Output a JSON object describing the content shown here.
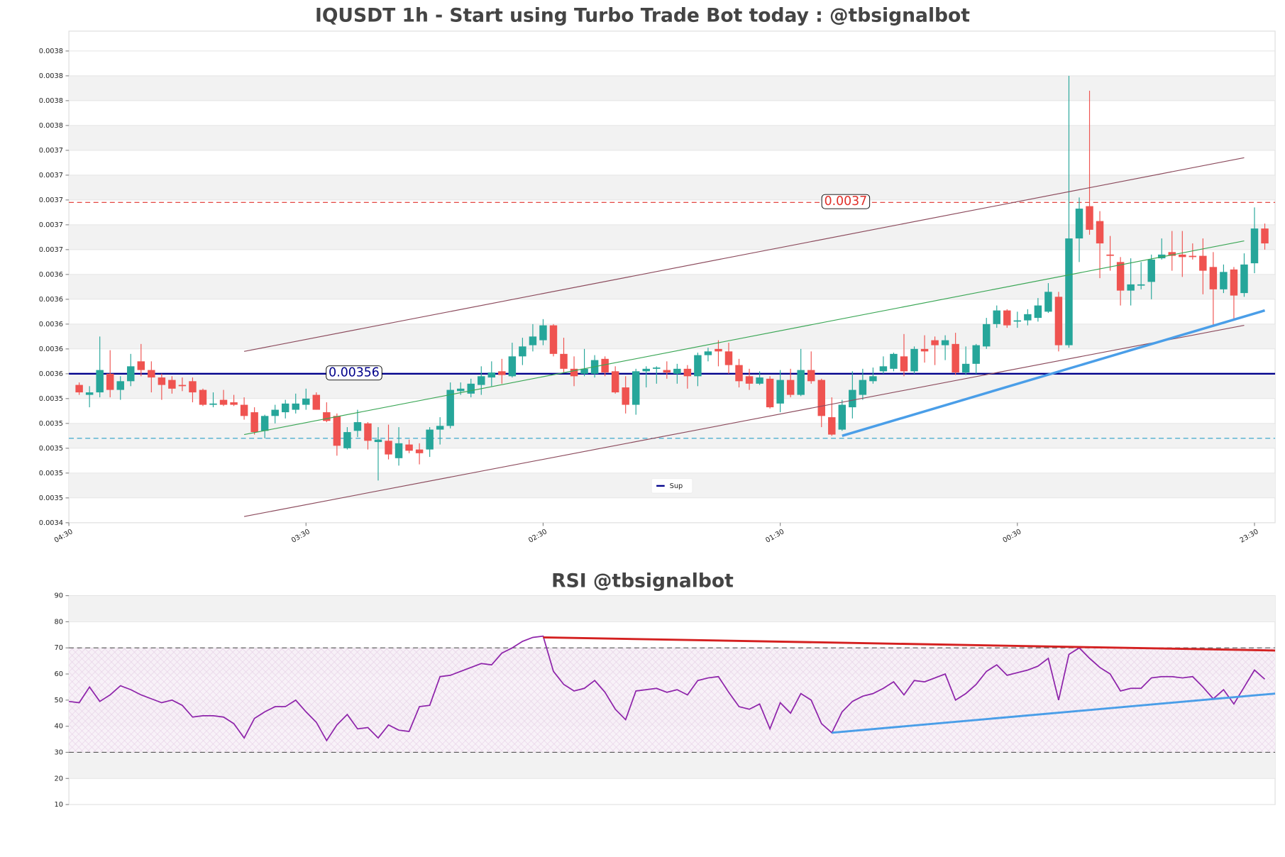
{
  "chart_data": [
    {
      "type": "candlestick",
      "title": "IQUSDT 1h - Start using Turbo Trade Bot today : @tbsignalbot",
      "xlim": [
        0,
        117
      ],
      "xticks": [
        {
          "value": 0,
          "label": "04:30"
        },
        {
          "value": 23,
          "label": "03:30"
        },
        {
          "value": 46,
          "label": "02:30"
        },
        {
          "value": 69,
          "label": "01:30"
        },
        {
          "value": 92,
          "label": "00:30"
        },
        {
          "value": 115,
          "label": "23:30"
        }
      ],
      "ylim": [
        0.00344,
        0.003836
      ],
      "yticks": [
        {
          "value": 0.00344,
          "label": "0.0034"
        },
        {
          "value": 0.00346,
          "label": "0.0035"
        },
        {
          "value": 0.00348,
          "label": "0.0035"
        },
        0.0035,
        {
          "value": 0.00352,
          "label": "0.0035"
        },
        {
          "value": 0.00354,
          "label": "0.0035"
        },
        {
          "value": 0.00356,
          "label": "0.0036"
        },
        {
          "value": 0.00358,
          "label": "0.0036"
        },
        0.0036,
        {
          "value": 0.00362,
          "label": "0.0036"
        },
        {
          "value": 0.00364,
          "label": "0.0036"
        },
        {
          "value": 0.00366,
          "label": "0.0037"
        },
        {
          "value": 0.00368,
          "label": "0.0037"
        },
        0.0037,
        {
          "value": 0.00372,
          "label": "0.0037"
        },
        {
          "value": 0.00374,
          "label": "0.0037"
        },
        {
          "value": 0.00376,
          "label": "0.0038"
        },
        {
          "value": 0.00378,
          "label": "0.0038"
        },
        0.0038,
        {
          "value": 0.00382,
          "label": "0.0038"
        }
      ],
      "up_color": "#26a69a",
      "down_color": "#ef5350",
      "open": [
        0.003551,
        0.003543,
        0.003545,
        0.00356,
        0.003547,
        0.003554,
        0.00357,
        0.003563,
        0.003557,
        0.003555,
        0.003551,
        0.003554,
        0.003547,
        0.003535,
        0.003539,
        0.003537,
        0.003535,
        0.003529,
        0.003514,
        0.003526,
        0.003529,
        0.003531,
        0.003535,
        0.003543,
        0.003529,
        0.003526,
        0.0035,
        0.003514,
        0.00352,
        0.003505,
        0.003506,
        0.003492,
        0.003503,
        0.003499,
        0.003499,
        0.003515,
        0.003518,
        0.003546,
        0.003544,
        0.003551,
        0.003557,
        0.003562,
        0.003558,
        0.003574,
        0.003583,
        0.003587,
        0.003599,
        0.003576,
        0.003564,
        0.00356,
        0.00356,
        0.003572,
        0.003562,
        0.003549,
        0.003535,
        0.003562,
        0.003564,
        0.003563,
        0.00356,
        0.003564,
        0.003558,
        0.003575,
        0.00358,
        0.003578,
        0.003567,
        0.003558,
        0.003552,
        0.003556,
        0.003536,
        0.003555,
        0.003543,
        0.003563,
        0.003555,
        0.003525,
        0.003515,
        0.003533,
        0.003543,
        0.003554,
        0.003562,
        0.003564,
        0.003574,
        0.003562,
        0.00358,
        0.003587,
        0.003583,
        0.003584,
        0.003561,
        0.003568,
        0.003582,
        0.0036,
        0.003611,
        0.003602,
        0.003603,
        0.003605,
        0.00361,
        0.003622,
        0.003583,
        0.003669,
        0.003695,
        0.003683,
        0.003656,
        0.00365,
        0.003627,
        0.003631,
        0.003634,
        0.003653,
        0.003658,
        0.003656,
        0.003655,
        0.003655,
        0.003646,
        0.003628,
        0.003644,
        0.003625,
        0.003649,
        0.003677
      ],
      "high": [
        0.003553,
        0.00355,
        0.00359,
        0.003579,
        0.003558,
        0.003576,
        0.003584,
        0.00357,
        0.00356,
        0.003558,
        0.003557,
        0.003557,
        0.003548,
        0.003545,
        0.003547,
        0.003543,
        0.003541,
        0.003533,
        0.003527,
        0.003535,
        0.003539,
        0.003544,
        0.003548,
        0.003545,
        0.003537,
        0.003528,
        0.003517,
        0.003531,
        0.003521,
        0.003517,
        0.003519,
        0.003517,
        0.003507,
        0.003504,
        0.003517,
        0.003525,
        0.003553,
        0.003553,
        0.003556,
        0.003566,
        0.00357,
        0.003572,
        0.003585,
        0.003589,
        0.0036,
        0.003604,
        0.0036,
        0.003589,
        0.003574,
        0.00358,
        0.003575,
        0.003574,
        0.003566,
        0.003558,
        0.003564,
        0.003566,
        0.003566,
        0.00357,
        0.003568,
        0.003567,
        0.003577,
        0.003581,
        0.003587,
        0.003585,
        0.003572,
        0.003564,
        0.003562,
        0.003558,
        0.003563,
        0.003564,
        0.00358,
        0.003578,
        0.003556,
        0.003541,
        0.003539,
        0.003562,
        0.003564,
        0.003565,
        0.003574,
        0.003577,
        0.003592,
        0.003582,
        0.003591,
        0.00359,
        0.003591,
        0.003593,
        0.003582,
        0.003584,
        0.003605,
        0.003615,
        0.003612,
        0.00361,
        0.003612,
        0.003621,
        0.003633,
        0.003626,
        0.0038,
        0.003702,
        0.003788,
        0.003691,
        0.003671,
        0.003654,
        0.003653,
        0.00365,
        0.003656,
        0.003669,
        0.003675,
        0.003675,
        0.003665,
        0.003669,
        0.003658,
        0.003648,
        0.003646,
        0.003657,
        0.003694,
        0.003681
      ],
      "low": [
        0.003543,
        0.003533,
        0.003541,
        0.003541,
        0.003539,
        0.00355,
        0.003558,
        0.003545,
        0.003539,
        0.003544,
        0.003546,
        0.003537,
        0.003534,
        0.003533,
        0.003534,
        0.003534,
        0.003523,
        0.003511,
        0.003508,
        0.00352,
        0.003524,
        0.003528,
        0.003531,
        0.003531,
        0.003521,
        0.003494,
        0.003499,
        0.003509,
        0.003499,
        0.003474,
        0.003491,
        0.003486,
        0.003496,
        0.003487,
        0.003493,
        0.003503,
        0.003516,
        0.003543,
        0.003541,
        0.003543,
        0.00355,
        0.003552,
        0.003557,
        0.003567,
        0.003578,
        0.003583,
        0.003574,
        0.003561,
        0.00355,
        0.003558,
        0.003557,
        0.003558,
        0.003544,
        0.003528,
        0.003527,
        0.003549,
        0.003552,
        0.003556,
        0.003552,
        0.003548,
        0.00355,
        0.00357,
        0.003566,
        0.00356,
        0.003549,
        0.003547,
        0.003551,
        0.003532,
        0.003529,
        0.003541,
        0.003542,
        0.003552,
        0.003517,
        0.00351,
        0.003514,
        0.003524,
        0.003539,
        0.003552,
        0.00356,
        0.003562,
        0.003558,
        0.00356,
        0.003569,
        0.003567,
        0.003571,
        0.003559,
        0.003559,
        0.00356,
        0.00358,
        0.003597,
        0.003597,
        0.003597,
        0.003599,
        0.003602,
        0.003609,
        0.003578,
        0.003581,
        0.00365,
        0.003672,
        0.003637,
        0.003643,
        0.003615,
        0.003615,
        0.003628,
        0.00362,
        0.003652,
        0.003643,
        0.003638,
        0.003652,
        0.003624,
        0.003599,
        0.003625,
        0.003603,
        0.003622,
        0.003641,
        0.00366
      ],
      "close": [
        0.003545,
        0.003545,
        0.003563,
        0.003547,
        0.003554,
        0.003566,
        0.003563,
        0.003557,
        0.003551,
        0.003548,
        0.00355,
        0.003545,
        0.003535,
        0.003536,
        0.003535,
        0.003535,
        0.003526,
        0.003513,
        0.003526,
        0.003531,
        0.003536,
        0.003536,
        0.00354,
        0.003531,
        0.003522,
        0.003502,
        0.003513,
        0.003521,
        0.003506,
        0.003507,
        0.003495,
        0.003504,
        0.003498,
        0.003496,
        0.003515,
        0.003518,
        0.003547,
        0.003548,
        0.003552,
        0.003558,
        0.003561,
        0.003559,
        0.003574,
        0.003582,
        0.00359,
        0.003599,
        0.003576,
        0.003564,
        0.003558,
        0.003564,
        0.003571,
        0.003561,
        0.003545,
        0.003535,
        0.003562,
        0.003564,
        0.003565,
        0.003561,
        0.003564,
        0.003558,
        0.003575,
        0.003578,
        0.003578,
        0.003567,
        0.003554,
        0.003552,
        0.003557,
        0.003533,
        0.003555,
        0.003543,
        0.003563,
        0.003554,
        0.003526,
        0.003511,
        0.003535,
        0.003547,
        0.003555,
        0.003558,
        0.003566,
        0.003576,
        0.003562,
        0.00358,
        0.003578,
        0.003583,
        0.003587,
        0.003561,
        0.003568,
        0.003583,
        0.0036,
        0.003611,
        0.003599,
        0.003603,
        0.003608,
        0.003615,
        0.003626,
        0.003583,
        0.003669,
        0.003693,
        0.003676,
        0.003665,
        0.003655,
        0.003627,
        0.003632,
        0.003632,
        0.003652,
        0.003656,
        0.003655,
        0.003654,
        0.003654,
        0.003643,
        0.003628,
        0.003642,
        0.003623,
        0.003648,
        0.003677,
        0.003665
      ],
      "trendlines": [
        {
          "x": [
            17,
            114
          ],
          "y": [
            0.003578,
            0.003734
          ],
          "color": "#8b4a5c"
        },
        {
          "x": [
            17,
            114
          ],
          "y": [
            0.003445,
            0.003599
          ],
          "color": "#8b4a5c"
        },
        {
          "x": [
            17,
            114
          ],
          "y": [
            0.003511,
            0.003667
          ],
          "color": "#3aa655"
        },
        {
          "x": [
            75,
            116
          ],
          "y": [
            0.00351,
            0.003611
          ],
          "color": "#4a9ee8"
        }
      ],
      "hlines": [
        {
          "name": "Sup",
          "value": 0.00356,
          "label": "0.00356",
          "color": "#00008b",
          "dashed": false
        },
        {
          "value": 0.003698,
          "label": "0.0037",
          "color": "#e0302a",
          "dashed": true
        },
        {
          "value": 0.003508,
          "color": "#2aa0c8",
          "dashed": true
        }
      ],
      "legend": "lower center",
      "grid": true
    },
    {
      "type": "line",
      "title": "RSI @tbsignalbot",
      "xlim": [
        0,
        117
      ],
      "ylim": [
        10,
        90
      ],
      "yticks": [
        10,
        20,
        30,
        40,
        50,
        60,
        70,
        80,
        90
      ],
      "color": "#8e24aa",
      "values": [
        49.5,
        49,
        55,
        49.5,
        52,
        55.5,
        54,
        52,
        50.5,
        49,
        50,
        48,
        43.5,
        44,
        44,
        43.5,
        41,
        35.5,
        43,
        45.5,
        47.5,
        47.5,
        50,
        45.5,
        41.5,
        34.5,
        40.5,
        44.5,
        39,
        39.5,
        35.5,
        40.5,
        38.5,
        38,
        47.5,
        48,
        59,
        59.5,
        61,
        62.5,
        64,
        63.5,
        68,
        70,
        72.5,
        74,
        74.5,
        61,
        56,
        53.5,
        54.5,
        57.5,
        53,
        46.5,
        42.5,
        53.5,
        54,
        54.5,
        53,
        54,
        52,
        57.5,
        58.5,
        59,
        53,
        47.5,
        46.5,
        48.5,
        39,
        49,
        45,
        52.5,
        50,
        41,
        37.5,
        45.5,
        49.5,
        51.5,
        52.5,
        54.5,
        57,
        52,
        57.5,
        57,
        58.5,
        60,
        50,
        52.5,
        56,
        61,
        63.5,
        59.5,
        60.5,
        61.5,
        63,
        66,
        50,
        67.5,
        70,
        66,
        62.5,
        60,
        53.5,
        54.5,
        54.5,
        58.5,
        59,
        59,
        58.5,
        59,
        55,
        50.5,
        54,
        48.5,
        55,
        61.5,
        58
      ],
      "band": [
        30,
        70
      ],
      "hlines": [
        {
          "value": 70,
          "color": "#555555",
          "dashed": true
        },
        {
          "value": 30,
          "color": "#555555",
          "dashed": true
        }
      ],
      "trendlines": [
        {
          "x": [
            46,
            117
          ],
          "y": [
            74,
            69
          ],
          "color": "#d42020"
        },
        {
          "x": [
            74,
            117
          ],
          "y": [
            37.5,
            52.5
          ],
          "color": "#4a9ee8"
        }
      ],
      "grid": true
    }
  ]
}
